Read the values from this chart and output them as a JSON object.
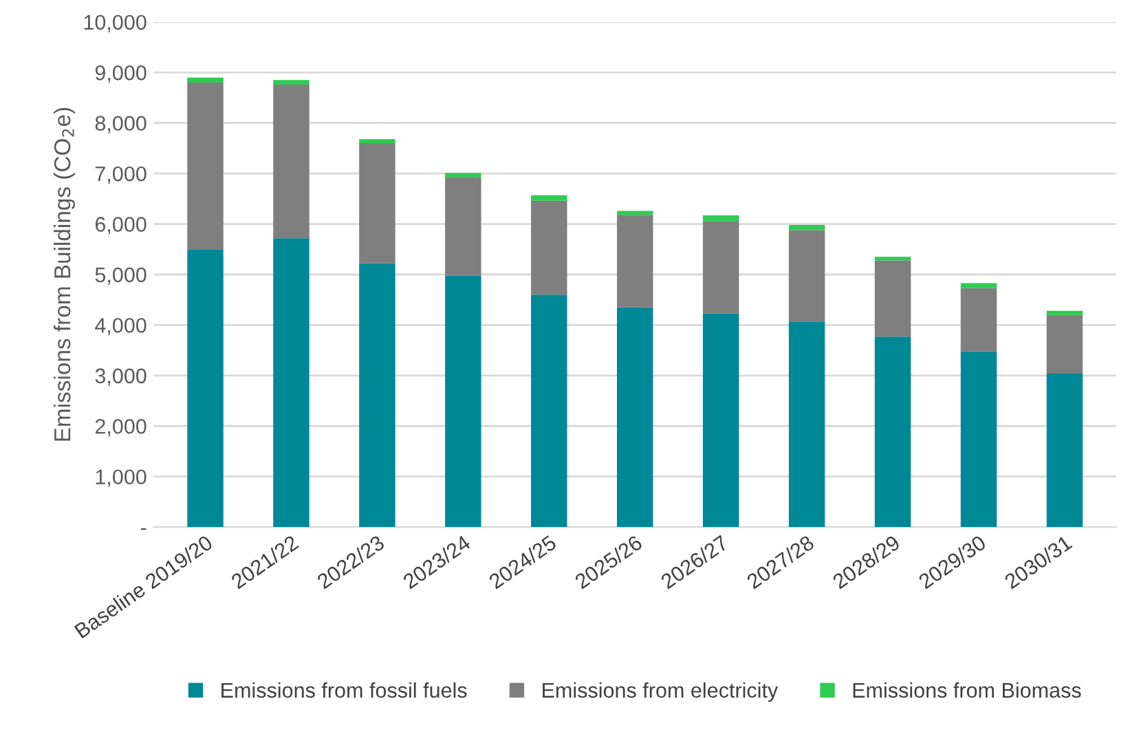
{
  "chart_data": {
    "type": "bar",
    "stacked": true,
    "ylabel": "Emissions from Buildings (CO$_{2}$e)",
    "categories": [
      "Baseline 2019/20",
      "2021/22",
      "2022/23",
      "2023/24",
      "2024/25",
      "2025/26",
      "2026/27",
      "2027/28",
      "2028/29",
      "2029/30",
      "2030/31"
    ],
    "series": [
      {
        "name": "Emissions from fossil fuels",
        "color": "#008896",
        "values": [
          5500,
          5720,
          5220,
          4980,
          4600,
          4350,
          4230,
          4070,
          3770,
          3480,
          3040
        ]
      },
      {
        "name": "Emissions from electricity",
        "color": "#7f7f7f",
        "values": [
          3300,
          3040,
          2380,
          1950,
          1860,
          1830,
          1830,
          1810,
          1510,
          1250,
          1160
        ]
      },
      {
        "name": "Emissions from Biomass",
        "color": "#2ecc52",
        "values": [
          100,
          90,
          80,
          80,
          110,
          80,
          110,
          100,
          70,
          100,
          80
        ]
      }
    ],
    "ylim": [
      0,
      10000
    ],
    "yticks": [
      {
        "value": 0,
        "label": "-"
      },
      {
        "value": 1000,
        "label": "1,000"
      },
      {
        "value": 2000,
        "label": "2,000"
      },
      {
        "value": 3000,
        "label": "3,000"
      },
      {
        "value": 4000,
        "label": "4,000"
      },
      {
        "value": 5000,
        "label": "5,000"
      },
      {
        "value": 6000,
        "label": "6,000"
      },
      {
        "value": 7000,
        "label": "7,000"
      },
      {
        "value": 8000,
        "label": "8,000"
      },
      {
        "value": 9000,
        "label": "9,000"
      },
      {
        "value": 10000,
        "label": "10,000"
      }
    ],
    "grid": "y",
    "legend": "bottom"
  }
}
